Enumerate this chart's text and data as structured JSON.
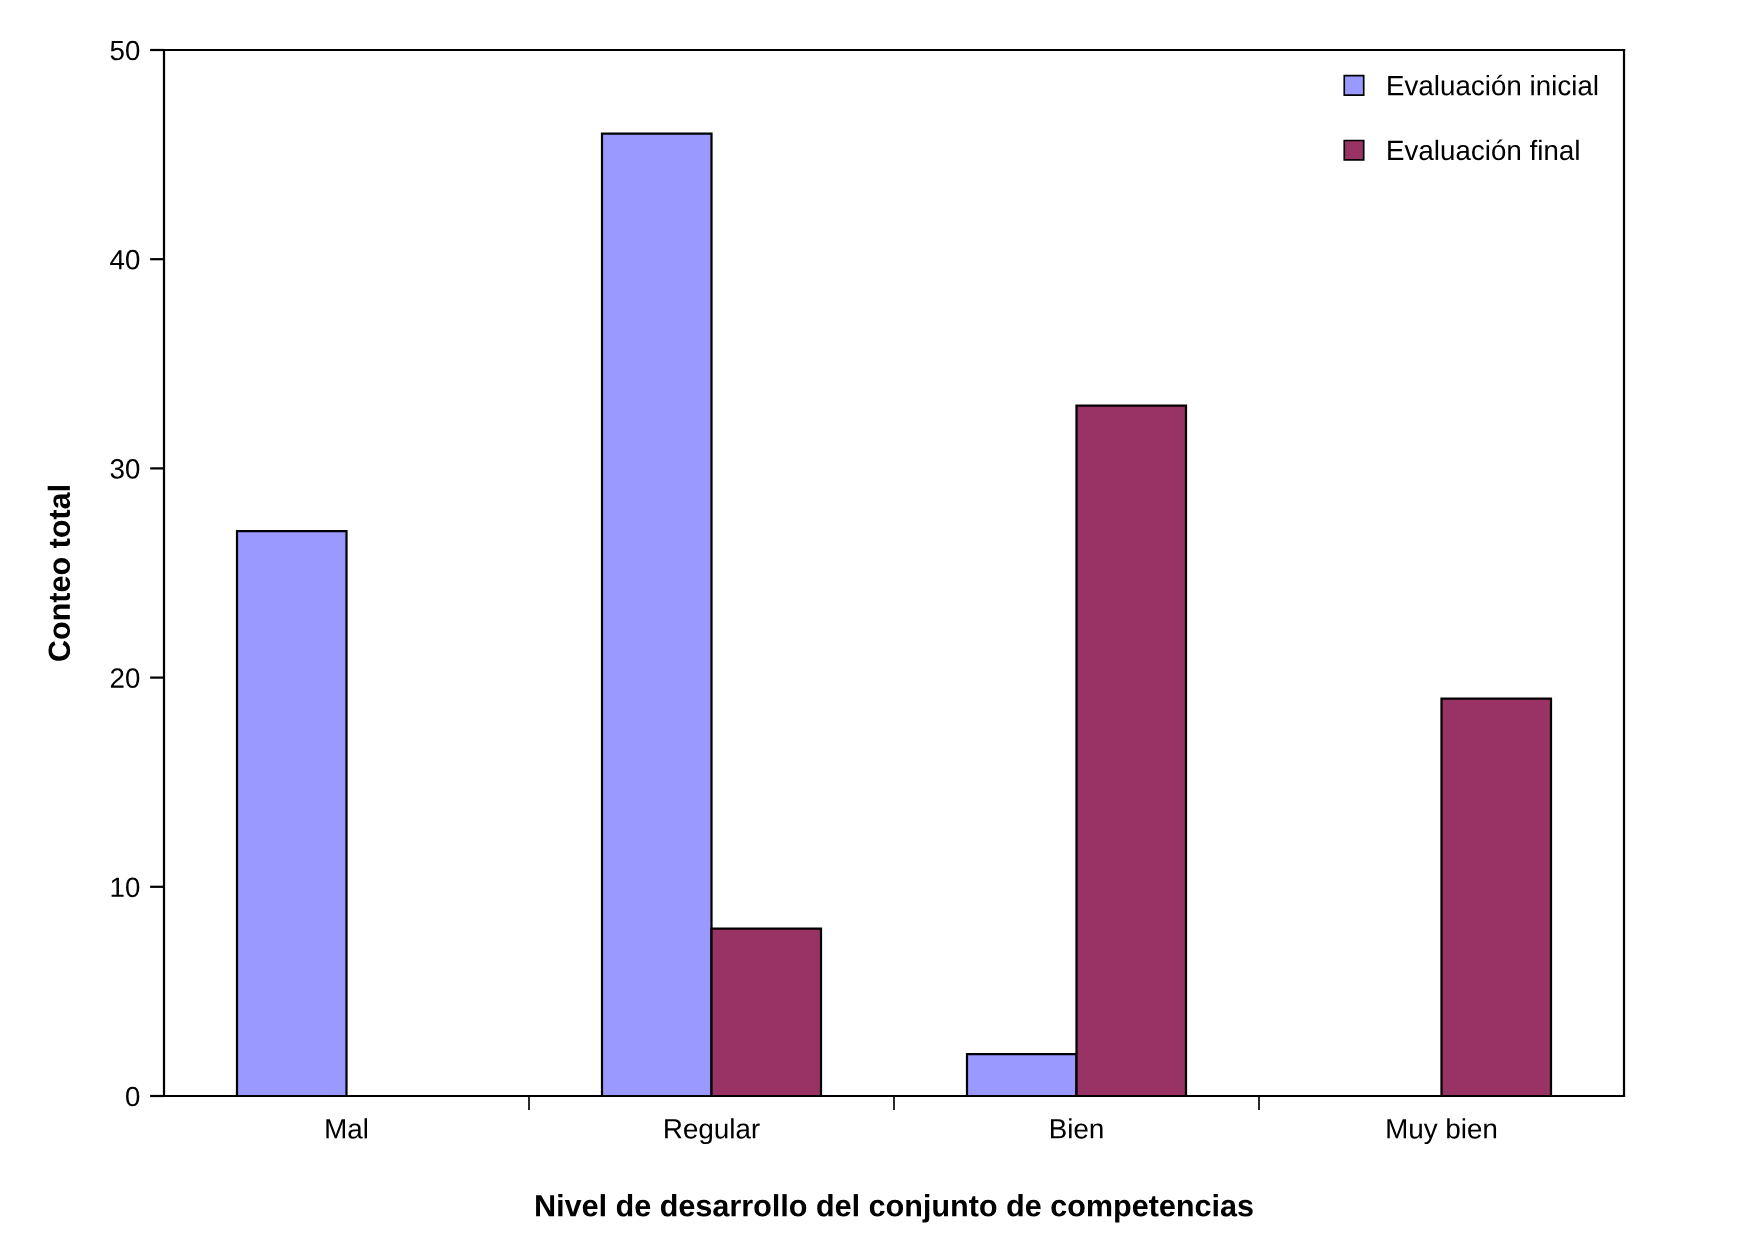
{
  "chart_data": {
    "type": "bar",
    "xlabel": "Nivel de desarrollo del conjunto de competencias",
    "ylabel": "Conteo total",
    "categories": [
      "Mal",
      "Regular",
      "Bien",
      "Muy bien"
    ],
    "series": [
      {
        "name": "Evaluación inicial",
        "color": "#9999ff",
        "values": [
          27,
          46,
          2,
          0
        ]
      },
      {
        "name": "Evaluación final",
        "color": "#993366",
        "values": [
          0,
          8,
          33,
          19
        ]
      }
    ],
    "ylim": [
      0,
      50
    ],
    "yticks": [
      0,
      10,
      20,
      30,
      40,
      50
    ],
    "grid": false,
    "legend": "top right"
  }
}
